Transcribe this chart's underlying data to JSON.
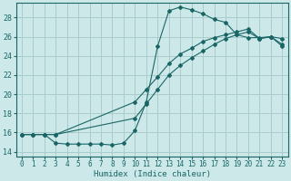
{
  "xlabel": "Humidex (Indice chaleur)",
  "bg_color": "#cce8e8",
  "grid_color": "#aacccc",
  "line_color": "#1a6666",
  "xlim": [
    -0.5,
    23.5
  ],
  "ylim": [
    13.5,
    29.5
  ],
  "xticks": [
    0,
    1,
    2,
    3,
    4,
    5,
    6,
    7,
    8,
    9,
    10,
    11,
    12,
    13,
    14,
    15,
    16,
    17,
    18,
    19,
    20,
    21,
    22,
    23
  ],
  "yticks": [
    14,
    16,
    18,
    20,
    22,
    24,
    26,
    28
  ],
  "line1_x": [
    0,
    1,
    2,
    3,
    4,
    5,
    6,
    7,
    8,
    9,
    10,
    11,
    12,
    13,
    14,
    15,
    16,
    17,
    18,
    19,
    20,
    21,
    22,
    23
  ],
  "line1_y": [
    15.8,
    15.8,
    15.8,
    14.9,
    14.8,
    14.8,
    14.8,
    14.8,
    14.7,
    14.9,
    16.2,
    19.2,
    25.0,
    28.7,
    29.1,
    28.8,
    28.4,
    27.8,
    27.5,
    26.2,
    25.9,
    25.9,
    26.0,
    25.8
  ],
  "line2_x": [
    0,
    1,
    2,
    3,
    10,
    11,
    12,
    13,
    14,
    15,
    16,
    17,
    18,
    19,
    20,
    21,
    22,
    23
  ],
  "line2_y": [
    15.8,
    15.8,
    15.8,
    15.8,
    19.2,
    20.5,
    21.8,
    23.2,
    24.2,
    24.8,
    25.5,
    25.9,
    26.2,
    26.5,
    26.8,
    25.8,
    26.0,
    25.0
  ],
  "line3_x": [
    0,
    1,
    2,
    3,
    10,
    11,
    12,
    13,
    14,
    15,
    16,
    17,
    18,
    19,
    20,
    21,
    22,
    23
  ],
  "line3_y": [
    15.8,
    15.8,
    15.8,
    15.8,
    17.5,
    19.0,
    20.5,
    22.0,
    23.0,
    23.8,
    24.5,
    25.2,
    25.8,
    26.2,
    26.5,
    25.8,
    26.0,
    25.2
  ]
}
